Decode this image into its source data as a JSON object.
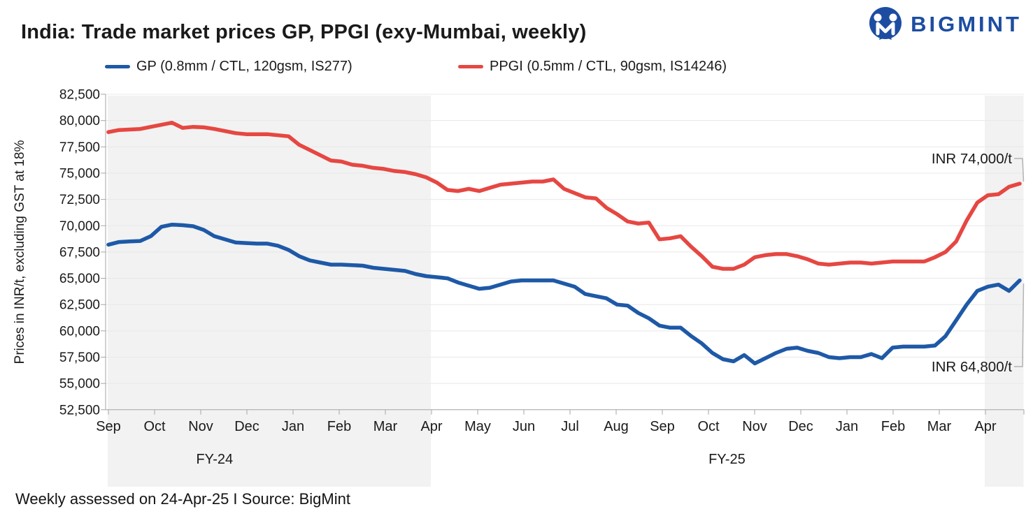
{
  "title": "India: Trade market prices GP, PPGI (exy-Mumbai, weekly)",
  "logo": {
    "text": "BIGMINT",
    "color": "#1c4da1"
  },
  "footer": "Weekly assessed on 24-Apr-25 I Source: BigMint",
  "y_axis_title": "Prices in INR/t, excluding GST at 18%",
  "chart_data": {
    "type": "line",
    "frequency": "weekly",
    "title": "India: Trade market prices GP, PPGI (exy-Mumbai, weekly)",
    "ylabel": "Prices in INR/t, excluding GST at 18%",
    "ylim": [
      52500,
      82500
    ],
    "y_step": 2500,
    "grid": "horizontal",
    "legend_position": "top",
    "x_months": [
      "Sep",
      "Oct",
      "Nov",
      "Dec",
      "Jan",
      "Feb",
      "Mar",
      "Apr",
      "May",
      "Jun",
      "Jul",
      "Aug",
      "Sep",
      "Oct",
      "Nov",
      "Dec",
      "Jan",
      "Feb",
      "Mar",
      "Apr"
    ],
    "fiscal_year_labels": [
      {
        "text": "FY-24",
        "month_pos": 2.3
      },
      {
        "text": "FY-25",
        "month_pos": 13.4
      }
    ],
    "shaded_band_month_ranges": [
      [
        0,
        7
      ],
      [
        19,
        19.84
      ]
    ],
    "band_color": "#f2f2f2",
    "series": [
      {
        "name": "GP (0.8mm / CTL, 120gsm, IS277)",
        "color": "#1e59a7",
        "values": [
          68200,
          68450,
          68500,
          68550,
          69000,
          69900,
          70100,
          70050,
          69950,
          69600,
          69000,
          68700,
          68400,
          68350,
          68300,
          68300,
          68100,
          67700,
          67100,
          66700,
          66500,
          66300,
          66300,
          66250,
          66200,
          66000,
          65900,
          65800,
          65700,
          65400,
          65200,
          65100,
          65000,
          64600,
          64300,
          64000,
          64100,
          64400,
          64700,
          64800,
          64800,
          64800,
          64800,
          64500,
          64200,
          63500,
          63300,
          63100,
          62500,
          62400,
          61700,
          61200,
          60500,
          60300,
          60300,
          59500,
          58800,
          57900,
          57300,
          57100,
          57700,
          56900,
          57400,
          57900,
          58300,
          58400,
          58100,
          57900,
          57500,
          57400,
          57500,
          57500,
          57800,
          57400,
          58400,
          58500,
          58500,
          58500,
          58600,
          59500,
          61000,
          62500,
          63800,
          64200,
          64400,
          63800,
          64800
        ]
      },
      {
        "name": "PPGI (0.5mm / CTL, 90gsm, IS14246)",
        "color": "#e64742",
        "values": [
          78900,
          79100,
          79150,
          79200,
          79400,
          79600,
          79800,
          79300,
          79400,
          79350,
          79200,
          79000,
          78800,
          78700,
          78700,
          78700,
          78600,
          78500,
          77700,
          77200,
          76700,
          76200,
          76100,
          75800,
          75700,
          75500,
          75400,
          75200,
          75100,
          74900,
          74600,
          74100,
          73400,
          73300,
          73500,
          73300,
          73600,
          73900,
          74000,
          74100,
          74200,
          74200,
          74400,
          73500,
          73100,
          72700,
          72600,
          71700,
          71100,
          70400,
          70200,
          70300,
          68700,
          68800,
          69000,
          68000,
          67100,
          66100,
          65900,
          65900,
          66300,
          67000,
          67200,
          67300,
          67300,
          67100,
          66800,
          66400,
          66300,
          66400,
          66500,
          66500,
          66400,
          66500,
          66600,
          66600,
          66600,
          66600,
          67000,
          67500,
          68500,
          70500,
          72200,
          72900,
          73000,
          73700,
          74000
        ]
      }
    ],
    "annotations": [
      {
        "text": "INR 74,000/t",
        "series": "PPGI",
        "value": 74000
      },
      {
        "text": "INR 64,800/t",
        "series": "GP",
        "value": 64800
      }
    ]
  }
}
